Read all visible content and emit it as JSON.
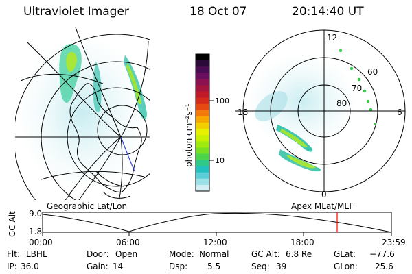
{
  "header": {
    "title": "Ultraviolet Imager",
    "date": "18 Oct 07",
    "time": "20:14:40 UT"
  },
  "colorbar": {
    "unit_label": "photon cm⁻²s⁻¹",
    "tick_labels": [
      "100",
      "10"
    ],
    "colors": [
      "#000000",
      "#2b0a3a",
      "#4a0c52",
      "#6a0f5f",
      "#8a1250",
      "#a3153c",
      "#c01a28",
      "#d42a1c",
      "#e64a12",
      "#f27a0a",
      "#f8a800",
      "#f2d000",
      "#e6f000",
      "#c8f000",
      "#a0ea10",
      "#78e020",
      "#4cd44a",
      "#2ec88a",
      "#22c0c0",
      "#5cd0d8",
      "#9ce0e8",
      "#d2eef2"
    ]
  },
  "polar_plot": {
    "labels": {
      "top": "12",
      "bottom": "0",
      "left": "18",
      "right": "6",
      "lat_60": "60",
      "lat_70": "70",
      "lat_80": "80"
    }
  },
  "timeline": {
    "left_label": "Geographic Lat/Lon",
    "right_label": "Apex MLat/MLT",
    "axis_label": "GC Alt",
    "y_top": "9.0",
    "y_bottom": "1.8",
    "x_ticks": [
      "00:00",
      "06:00",
      "12:00",
      "18:00",
      "23:59"
    ],
    "marker_color": "#ff0000"
  },
  "info": {
    "flt_label": "Flt:",
    "flt_value": "LBHL",
    "ip_label": "IP:",
    "ip_value": "36.0",
    "door_label": "Door:",
    "door_value": "Open",
    "gain_label": "Gain:",
    "gain_value": "14",
    "mode_label": "Mode:",
    "mode_value": "Normal",
    "dsp_label": "Dsp:",
    "dsp_value": "5.5",
    "gcalt_label": "GC Alt:",
    "gcalt_value": "6.8 Re",
    "seq_label": "Seq:",
    "seq_value": "39",
    "glat_label": "GLat:",
    "glat_value": "−77.6",
    "glon_label": "GLon:",
    "glon_value": "25.6"
  }
}
